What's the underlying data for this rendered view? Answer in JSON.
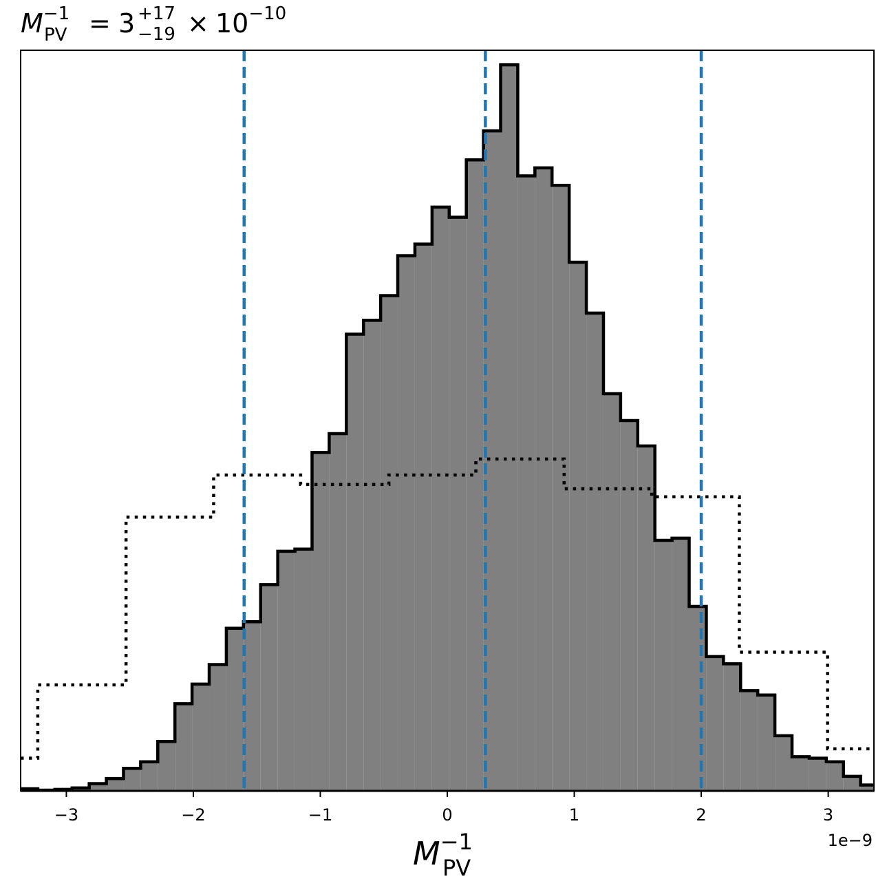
{
  "chart_data": {
    "type": "histogram",
    "title": {
      "symbol": "M",
      "subscript": "PV",
      "superscript": "−1",
      "equals": "=",
      "value": "3",
      "err_plus": "+17",
      "err_minus": "−19",
      "times": "×",
      "base": "10",
      "exponent": "−10"
    },
    "xlabel": {
      "symbol": "M",
      "subscript": "PV",
      "superscript": "−1"
    },
    "offset_label": "1e−9",
    "xlim": [
      -3.36,
      3.36
    ],
    "ylim": [
      0,
      1.02
    ],
    "xticks": [
      {
        "value": -3,
        "label": "−3"
      },
      {
        "value": -2,
        "label": "−2"
      },
      {
        "value": -1,
        "label": "−1"
      },
      {
        "value": 0,
        "label": "0"
      },
      {
        "value": 1,
        "label": "1"
      },
      {
        "value": 2,
        "label": "2"
      },
      {
        "value": 3,
        "label": "3"
      }
    ],
    "yticks": "none",
    "grid": false,
    "posterior": {
      "style": "filled gray step, black outline",
      "fill_color": "#808080",
      "edge_color": "#000000",
      "edges": [
        -3.36,
        -3.225,
        -3.09,
        -2.955,
        -2.82,
        -2.685,
        -2.55,
        -2.415,
        -2.28,
        -2.145,
        -2.01,
        -1.875,
        -1.74,
        -1.605,
        -1.47,
        -1.335,
        -1.2,
        -1.065,
        -0.93,
        -0.795,
        -0.66,
        -0.525,
        -0.39,
        -0.255,
        -0.12,
        0.015,
        0.15,
        0.285,
        0.42,
        0.555,
        0.69,
        0.825,
        0.96,
        1.095,
        1.23,
        1.365,
        1.5,
        1.635,
        1.77,
        1.905,
        2.04,
        2.175,
        2.31,
        2.445,
        2.58,
        2.715,
        2.85,
        2.985,
        3.12,
        3.255,
        3.36
      ],
      "values": [
        0.003,
        0.001,
        0.002,
        0.004,
        0.01,
        0.017,
        0.031,
        0.04,
        0.068,
        0.12,
        0.147,
        0.174,
        0.224,
        0.233,
        0.284,
        0.33,
        0.333,
        0.466,
        0.492,
        0.629,
        0.648,
        0.682,
        0.737,
        0.753,
        0.804,
        0.79,
        0.869,
        0.909,
        1.0,
        0.847,
        0.858,
        0.834,
        0.728,
        0.658,
        0.547,
        0.51,
        0.475,
        0.345,
        0.348,
        0.254,
        0.185,
        0.175,
        0.138,
        0.132,
        0.076,
        0.047,
        0.045,
        0.04,
        0.02,
        0.008
      ]
    },
    "prior": {
      "style": "black dotted step",
      "color": "#000000",
      "edges": [
        -3.36,
        -3.225,
        -2.53,
        -1.84,
        -1.155,
        -0.46,
        0.225,
        0.92,
        1.61,
        2.3,
        2.995,
        3.36
      ],
      "values": [
        0.045,
        0.146,
        0.377,
        0.435,
        0.422,
        0.435,
        0.457,
        0.416,
        0.405,
        0.191,
        0.058
      ]
    },
    "percentile_lines": {
      "style": "dashed vertical",
      "color": "#1f77b4",
      "x": [
        -1.6,
        0.3,
        2.0
      ]
    }
  }
}
